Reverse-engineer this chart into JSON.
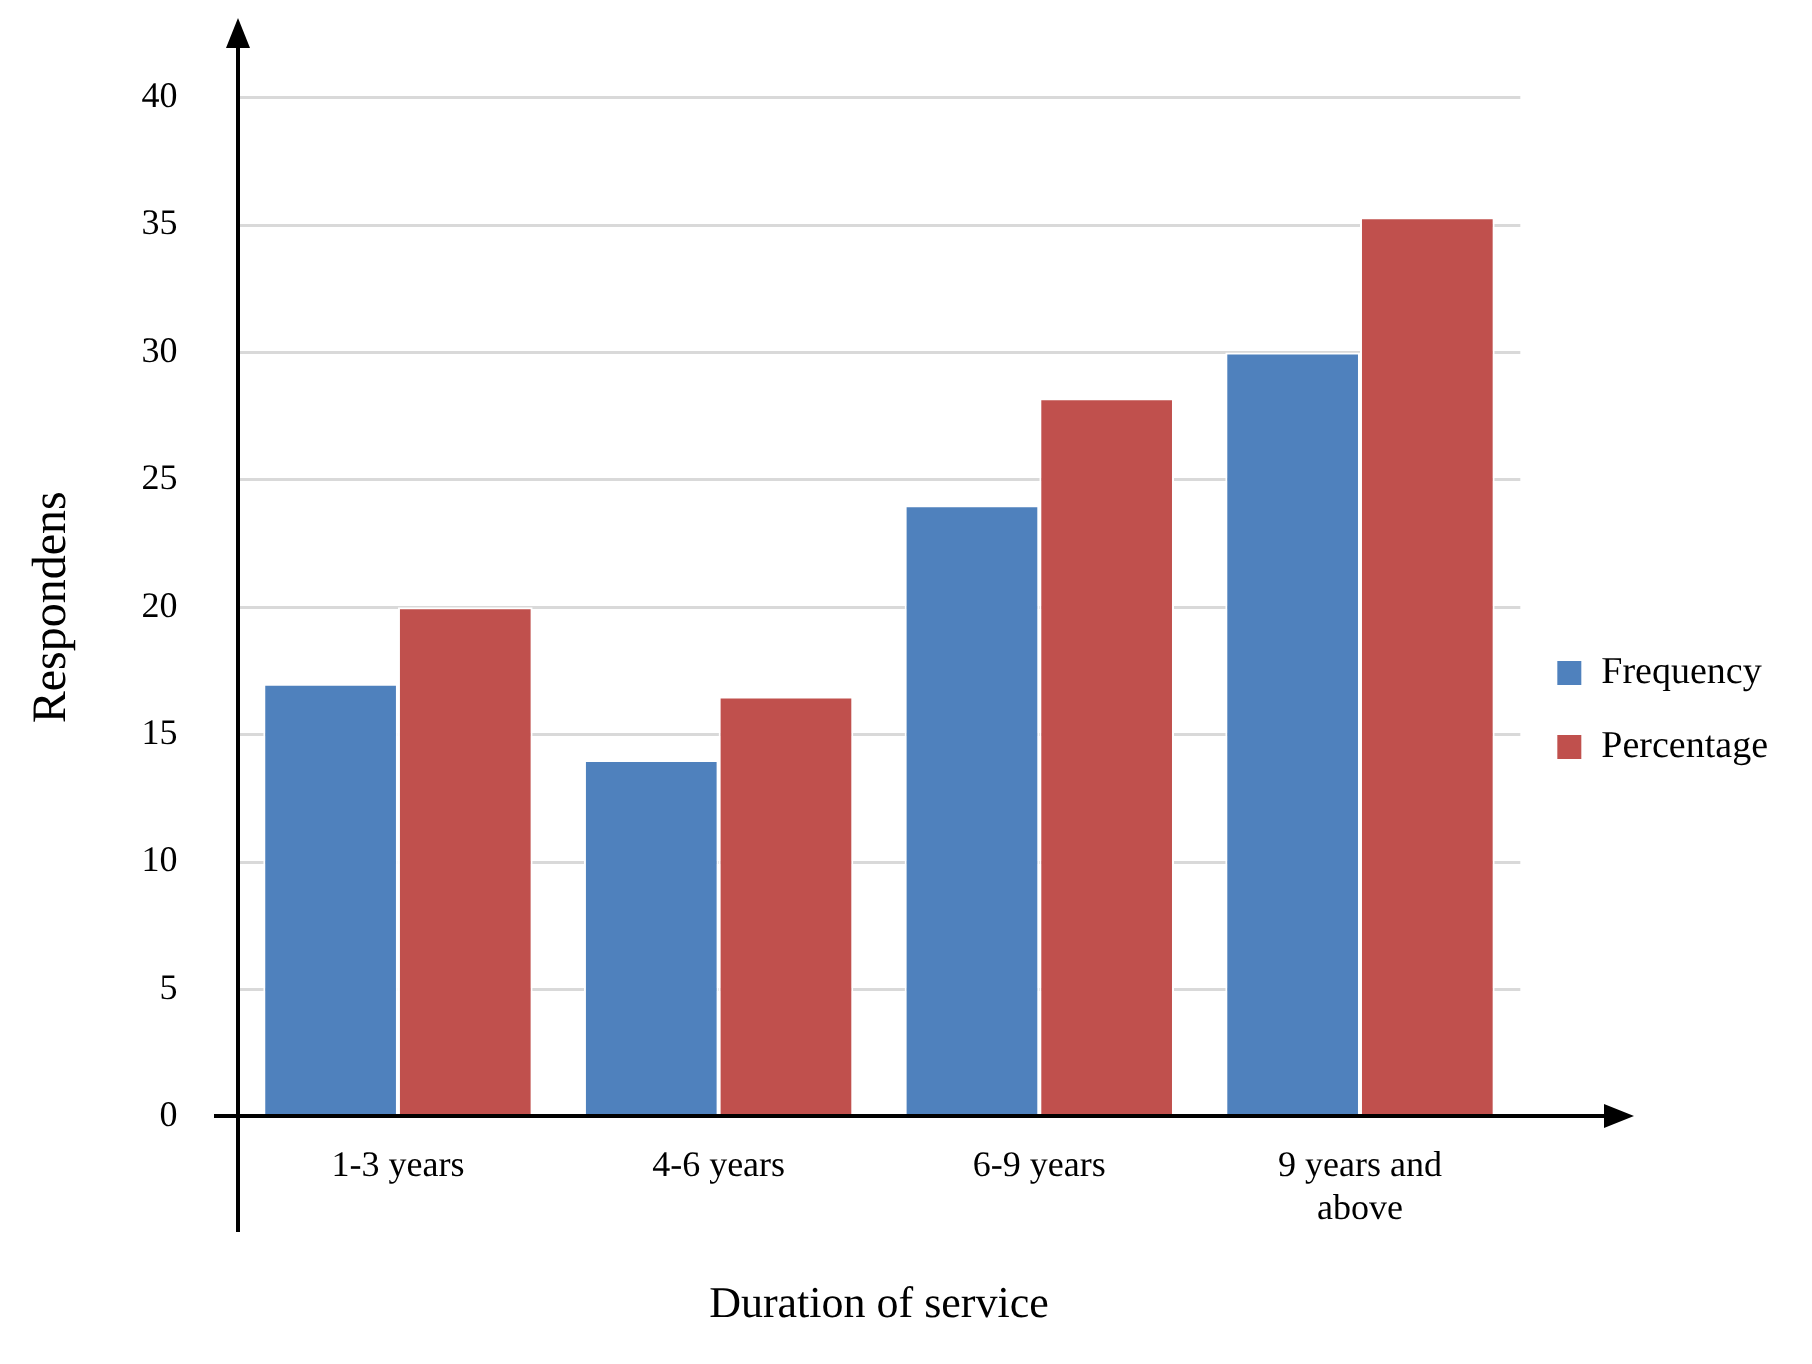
{
  "chart_data": {
    "type": "bar",
    "xlabel": "Duration of service",
    "ylabel": "Respondens",
    "categories": [
      "1-3 years",
      "4-6 years",
      "6-9 years",
      "9 years and above"
    ],
    "series": [
      {
        "name": "Frequency",
        "color": "#4f81bd",
        "values": [
          17,
          14,
          24,
          30
        ]
      },
      {
        "name": "Percentage",
        "color": "#c0504d",
        "values": [
          20,
          16.5,
          28.2,
          35.3
        ]
      }
    ],
    "ylim": [
      0,
      40
    ],
    "yticks": [
      0,
      5,
      10,
      15,
      20,
      25,
      30,
      35,
      40
    ],
    "grid": "y",
    "legend": "right"
  }
}
